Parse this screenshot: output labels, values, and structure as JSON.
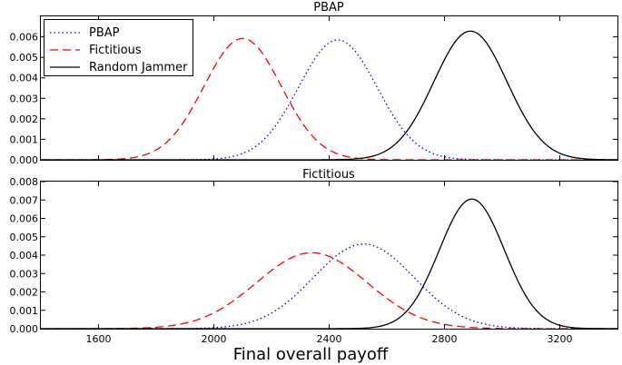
{
  "chart_data": [
    {
      "type": "line",
      "title": "PBAP",
      "xlabel": "",
      "ylabel": "",
      "xlim": [
        1400,
        3400
      ],
      "ylim": [
        0,
        0.007
      ],
      "yticks": [
        "0.000",
        "0.001",
        "0.002",
        "0.003",
        "0.004",
        "0.005",
        "0.006"
      ],
      "ytick_values": [
        0,
        0.001,
        0.002,
        0.003,
        0.004,
        0.005,
        0.006
      ],
      "grid": false,
      "legend": "top-left",
      "series": [
        {
          "name": "PBAP",
          "style": "dotted",
          "color": "#0000ff",
          "mean": 2430,
          "sd": 136,
          "peak": 0.00585
        },
        {
          "name": "Fictitious",
          "style": "dashed",
          "color": "#ff0000",
          "mean": 2100,
          "sd": 134,
          "peak": 0.00592
        },
        {
          "name": "Random Jammer",
          "style": "solid",
          "color": "#000000",
          "mean": 2890,
          "sd": 127,
          "peak": 0.00628
        }
      ]
    },
    {
      "type": "line",
      "title": "Fictitious",
      "xlabel": "Final overall payoff",
      "ylabel": "",
      "xlim": [
        1400,
        3400
      ],
      "ylim": [
        0,
        0.008
      ],
      "xticks": [
        "1600",
        "2000",
        "2400",
        "2800",
        "3200"
      ],
      "xtick_values": [
        1600,
        2000,
        2400,
        2800,
        3200
      ],
      "yticks": [
        "0.000",
        "0.001",
        "0.002",
        "0.003",
        "0.004",
        "0.005",
        "0.006",
        "0.007",
        "0.008"
      ],
      "ytick_values": [
        0,
        0.001,
        0.002,
        0.003,
        0.004,
        0.005,
        0.006,
        0.007,
        0.008
      ],
      "grid": false,
      "series": [
        {
          "name": "PBAP",
          "style": "dotted",
          "color": "#0000ff",
          "mean": 2520,
          "sd": 174,
          "peak": 0.0046
        },
        {
          "name": "Fictitious",
          "style": "dashed",
          "color": "#ff0000",
          "mean": 2340,
          "sd": 192,
          "peak": 0.00413
        },
        {
          "name": "Random Jammer",
          "style": "solid",
          "color": "#000000",
          "mean": 2895,
          "sd": 113,
          "peak": 0.00705
        }
      ]
    }
  ]
}
